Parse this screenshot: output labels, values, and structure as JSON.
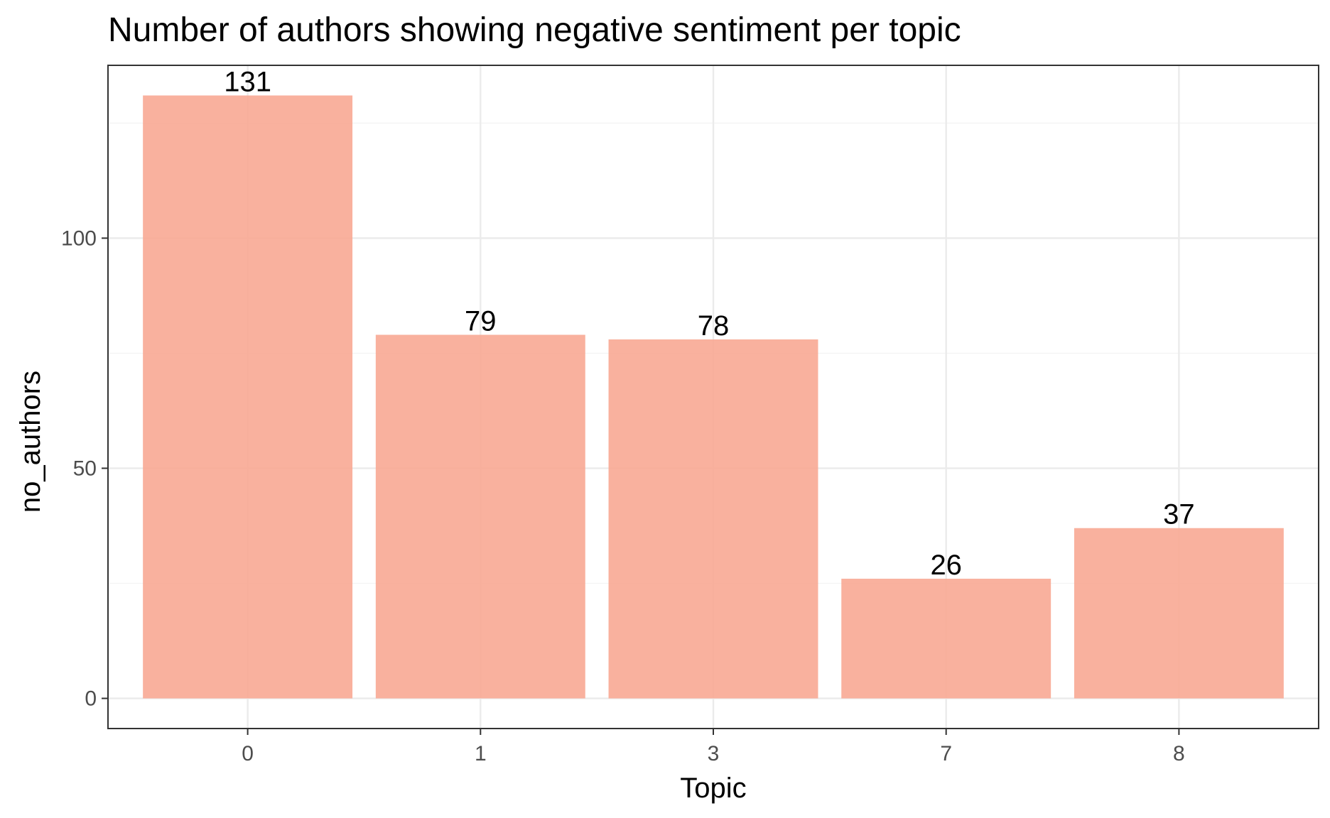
{
  "chart_data": {
    "type": "bar",
    "title": "Number of authors showing negative sentiment per topic",
    "xlabel": "Topic",
    "ylabel": "no_authors",
    "categories": [
      "0",
      "1",
      "3",
      "7",
      "8"
    ],
    "values": [
      131,
      79,
      78,
      26,
      37
    ],
    "data_labels": [
      "131",
      "79",
      "78",
      "26",
      "37"
    ],
    "yticks": [
      0,
      50,
      100
    ],
    "ytick_labels": [
      "0",
      "50",
      "100"
    ],
    "ylim": [
      -6.55,
      137.55
    ],
    "grid": true,
    "legend": "none",
    "colors": {
      "bar": "#f8a994",
      "panel_border": "#333333",
      "grid_major": "#ebebeb",
      "grid_minor": "#f3f3f3",
      "tick_label": "#4d4d4d"
    }
  }
}
